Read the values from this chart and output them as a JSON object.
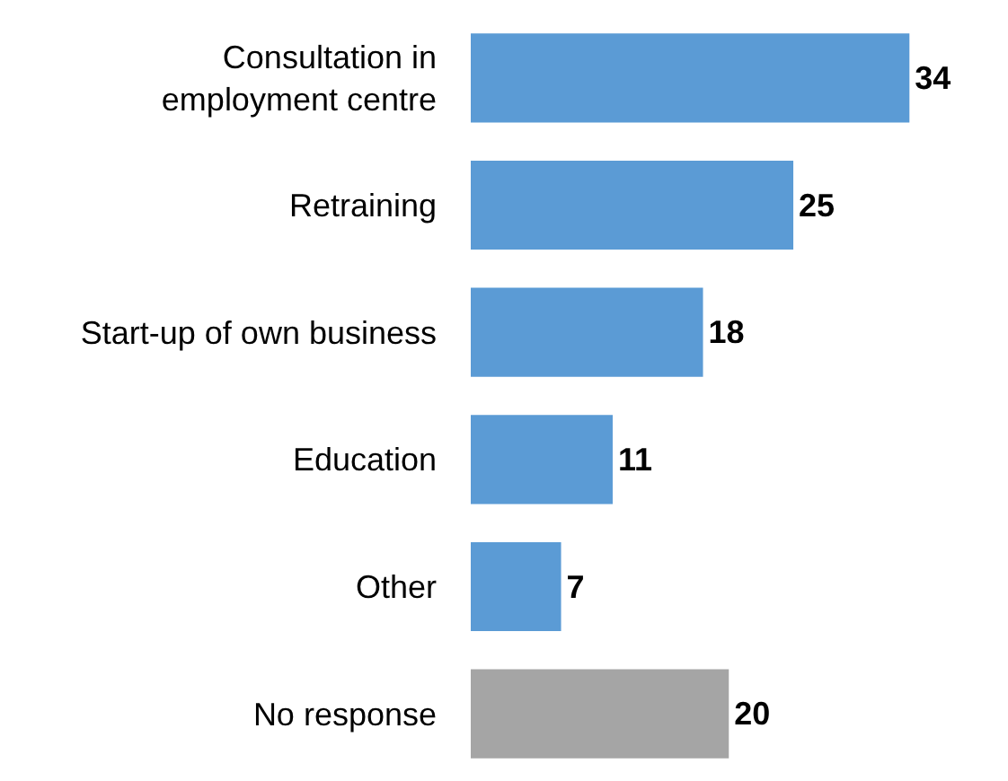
{
  "chart_data": {
    "type": "bar",
    "orientation": "horizontal",
    "categories": [
      "Consultation in\nemployment centre",
      "Retraining",
      "Start-up of own business",
      "Education",
      "Other",
      "No response"
    ],
    "values": [
      34,
      25,
      18,
      11,
      7,
      20
    ],
    "colors": [
      "#5b9bd5",
      "#5b9bd5",
      "#5b9bd5",
      "#5b9bd5",
      "#5b9bd5",
      "#a5a5a5"
    ],
    "data_labels": true,
    "legend": false
  }
}
